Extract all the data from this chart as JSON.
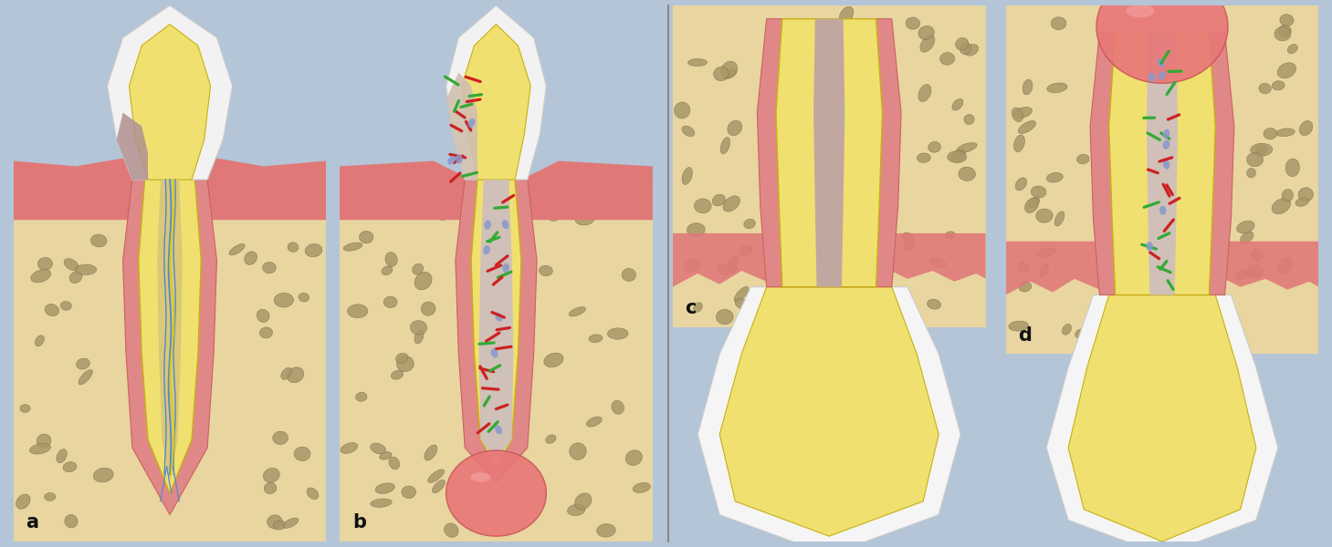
{
  "background_color": "#b3c5d7",
  "bone_color": "#e8d5a0",
  "bone_stone_color": "#a89868",
  "dentin_color": "#f0e070",
  "enamel_color": "#f2f2f2",
  "pdl_color": "#e08888",
  "cementum_color": "#d4c040",
  "nerve_color": "#5588cc",
  "gum_color": "#e07878",
  "gum2_color": "#cc6666",
  "abscess_color": "#e87878",
  "abscess_highlight": "#f0a0a0",
  "bacteria_red": "#cc2222",
  "bacteria_green": "#33aa33",
  "bacteria_blue": "#8899cc",
  "necrosis_color": "#c0a8a0",
  "caries_color": "#b09090",
  "label_color": "#111111",
  "divider_color": "#888888",
  "labels": [
    "a",
    "b",
    "c",
    "d"
  ]
}
